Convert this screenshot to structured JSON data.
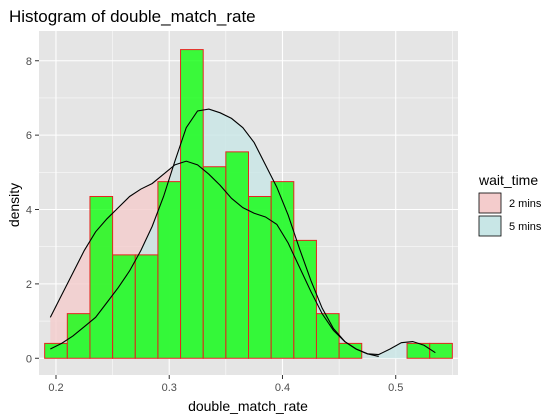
{
  "chart_data": {
    "type": "histogram",
    "title": "Histogram of double_match_rate",
    "xlabel": "double_match_rate",
    "ylabel": "density",
    "xlim": [
      0.185,
      0.555
    ],
    "ylim": [
      -0.45,
      8.8
    ],
    "x_ticks": [
      0.2,
      0.3,
      0.4,
      0.5
    ],
    "x_tick_labels": [
      "0.2",
      "0.3",
      "0.4",
      "0.5"
    ],
    "y_ticks": [
      0,
      2,
      4,
      6,
      8
    ],
    "y_tick_labels": [
      "0",
      "2",
      "4",
      "6",
      "8"
    ],
    "grid": true,
    "histogram": {
      "bin_edges": [
        0.19,
        0.21,
        0.23,
        0.25,
        0.27,
        0.29,
        0.31,
        0.33,
        0.35,
        0.37,
        0.39,
        0.41,
        0.43,
        0.45,
        0.47,
        0.49,
        0.51,
        0.53,
        0.55
      ],
      "density": [
        0.4,
        1.2,
        4.35,
        2.78,
        2.78,
        4.75,
        8.3,
        5.15,
        5.55,
        4.35,
        4.75,
        3.17,
        1.2,
        0.4,
        0.0,
        0.0,
        0.4,
        0.4
      ],
      "fill_color": "#00ff00",
      "line_color": "#e3261f"
    },
    "density_curves": [
      {
        "name": "2 mins",
        "fill": "#f4cccc",
        "x": [
          0.195,
          0.205,
          0.215,
          0.225,
          0.235,
          0.245,
          0.255,
          0.265,
          0.275,
          0.285,
          0.295,
          0.305,
          0.315,
          0.325,
          0.335,
          0.345,
          0.355,
          0.365,
          0.375,
          0.385,
          0.395,
          0.405,
          0.415,
          0.425,
          0.435,
          0.445,
          0.455,
          0.465,
          0.475,
          0.485
        ],
        "y": [
          1.1,
          1.7,
          2.3,
          2.9,
          3.4,
          3.75,
          4.05,
          4.35,
          4.55,
          4.7,
          4.95,
          5.2,
          5.3,
          5.2,
          4.95,
          4.65,
          4.3,
          4.05,
          3.9,
          3.8,
          3.6,
          3.1,
          2.45,
          1.8,
          1.2,
          0.75,
          0.45,
          0.25,
          0.12,
          0.05
        ]
      },
      {
        "name": "5 mins",
        "fill": "#c8e6e6",
        "x": [
          0.195,
          0.205,
          0.215,
          0.225,
          0.235,
          0.245,
          0.255,
          0.265,
          0.275,
          0.285,
          0.295,
          0.305,
          0.315,
          0.325,
          0.335,
          0.345,
          0.355,
          0.365,
          0.375,
          0.385,
          0.395,
          0.405,
          0.415,
          0.425,
          0.435,
          0.445,
          0.455,
          0.465,
          0.475,
          0.485,
          0.495,
          0.505,
          0.515,
          0.525,
          0.535
        ],
        "y": [
          0.25,
          0.4,
          0.6,
          0.85,
          1.1,
          1.5,
          1.9,
          2.35,
          2.9,
          3.55,
          4.35,
          5.3,
          6.2,
          6.65,
          6.7,
          6.6,
          6.45,
          6.2,
          5.8,
          5.2,
          4.6,
          3.85,
          2.95,
          2.1,
          1.35,
          0.8,
          0.45,
          0.25,
          0.12,
          0.1,
          0.25,
          0.42,
          0.45,
          0.35,
          0.15
        ]
      }
    ],
    "legend": {
      "title": "wait_time",
      "placement": "right",
      "entries": [
        "2 mins",
        "5 mins"
      ]
    },
    "colors": {
      "panel_background": "#e5e5e5",
      "grid_line": "#ffffff"
    }
  }
}
